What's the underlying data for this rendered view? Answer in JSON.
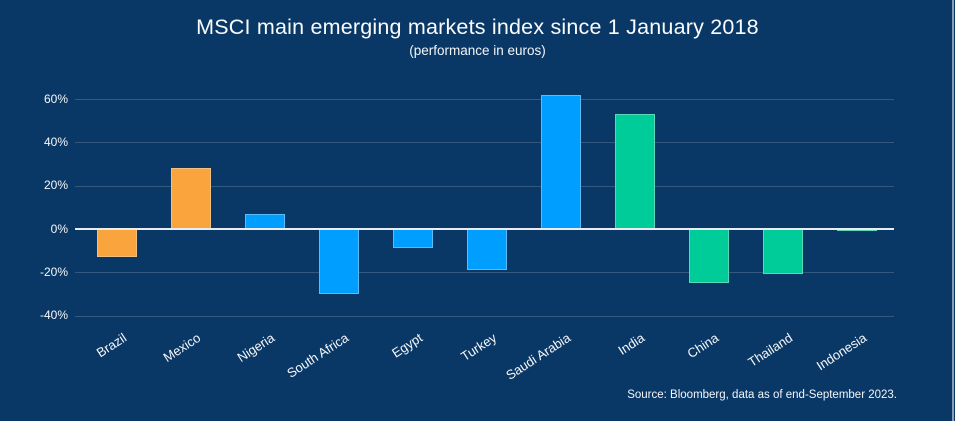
{
  "header": {
    "title": "MSCI main emerging markets index since 1 January 2018",
    "subtitle": "(performance in euros)"
  },
  "footer": {
    "source": "Source: Bloomberg, data as of end-September 2023."
  },
  "palette": {
    "background": "#0A3866",
    "text": "#FAFBFC",
    "gridline": "#2E5680",
    "zero_line": "#E9ECF0",
    "orange": "#F9A43D",
    "blue": "#009EFF",
    "green": "#00CC99"
  },
  "chart_data": {
    "type": "bar",
    "title": "MSCI main emerging markets index since 1 January 2018",
    "subtitle": "(performance in euros)",
    "categories": [
      "Brazil",
      "Mexico",
      "Nigeria",
      "South Africa",
      "Egypt",
      "Turkey",
      "Saudi Arabia",
      "India",
      "China",
      "Thailand",
      "Indonesia"
    ],
    "values": [
      -13,
      28,
      7,
      -30,
      -9,
      -19,
      62,
      53,
      -25,
      -21,
      -1
    ],
    "bar_color_names": [
      "orange",
      "orange",
      "blue",
      "blue",
      "blue",
      "blue",
      "blue",
      "green",
      "green",
      "green",
      "green"
    ],
    "unit": "%",
    "yticks": [
      60,
      40,
      20,
      0,
      -20,
      -40
    ],
    "ytick_labels": [
      "60%",
      "40%",
      "20%",
      "0%",
      "-20%",
      "-40%"
    ],
    "ylim": [
      -45,
      68
    ],
    "grid": true,
    "legend": "none",
    "xlabel": "",
    "ylabel": "",
    "source": "Source: Bloomberg, data as of end-September 2023."
  }
}
